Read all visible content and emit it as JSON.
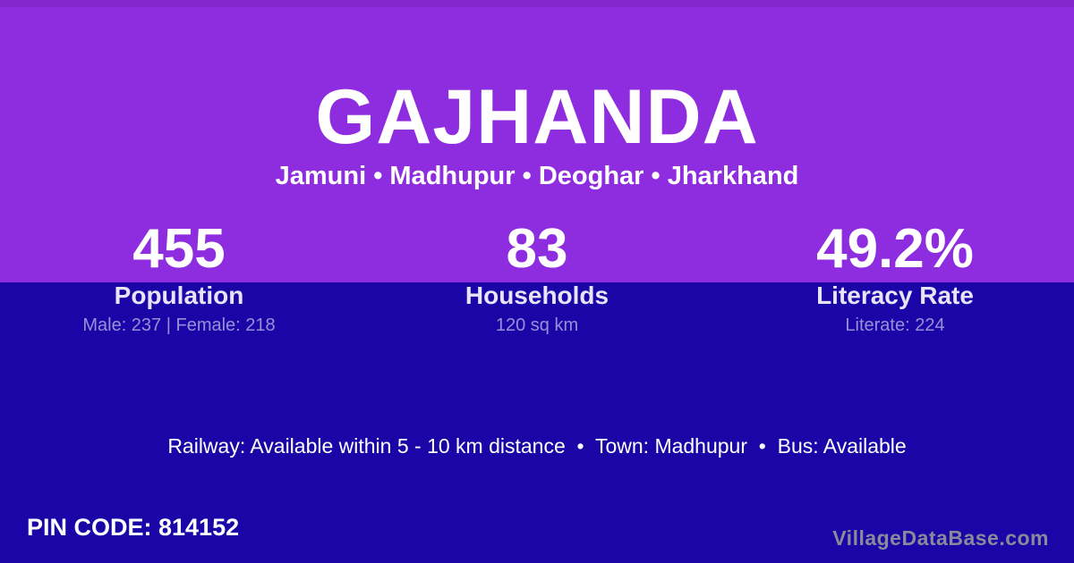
{
  "theme": {
    "header_purple": "#8E2CDF",
    "body_indigo": "#1B05A6",
    "primary_text": "#FFFFFF",
    "label_text": "#E9E3F8",
    "muted_text": "rgba(255,255,255,0.55)",
    "watermark_text": "#8A8A9B"
  },
  "header": {
    "village_name": "GAJHANDA",
    "location_breadcrumb": "Jamuni • Madhupur • Deoghar • Jharkhand"
  },
  "stats": [
    {
      "value": "455",
      "label": "Population",
      "detail": "Male: 237 | Female: 218"
    },
    {
      "value": "83",
      "label": "Households",
      "detail": "120 sq km"
    },
    {
      "value": "49.2%",
      "label": "Literacy Rate",
      "detail": "Literate: 224"
    }
  ],
  "amenities": {
    "line": "Railway: Available within 5 - 10 km distance  •  Town: Madhupur  •  Bus: Available"
  },
  "footer": {
    "pin_code": "PIN CODE: 814152",
    "watermark": "VillageDataBase.com"
  }
}
